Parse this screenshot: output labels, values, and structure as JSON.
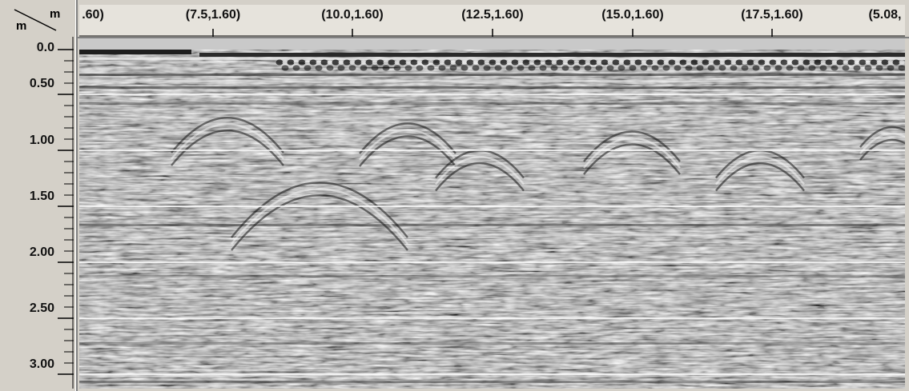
{
  "corner": {
    "unit_x": "m",
    "unit_y": "m"
  },
  "horizontal_ruler": {
    "labels": [
      ".60)",
      "(7.5,1.60)",
      "(10.0,1.60)",
      "(12.5,1.60)",
      "(15.0,1.60)",
      "(17.5,1.60)",
      "(5.08,"
    ]
  },
  "vertical_ruler": {
    "labels": [
      "0.0",
      "0.50",
      "1.00",
      "1.50",
      "2.00",
      "2.50",
      "3.00"
    ],
    "depth_range_m": [
      0.0,
      3.15
    ]
  },
  "colors": {
    "window_bg": "#d4d0c8",
    "ruler_bg": "#e6e3dc",
    "radargram_mid": "#8a8a8a",
    "depth_gridline": "#ffffff"
  }
}
